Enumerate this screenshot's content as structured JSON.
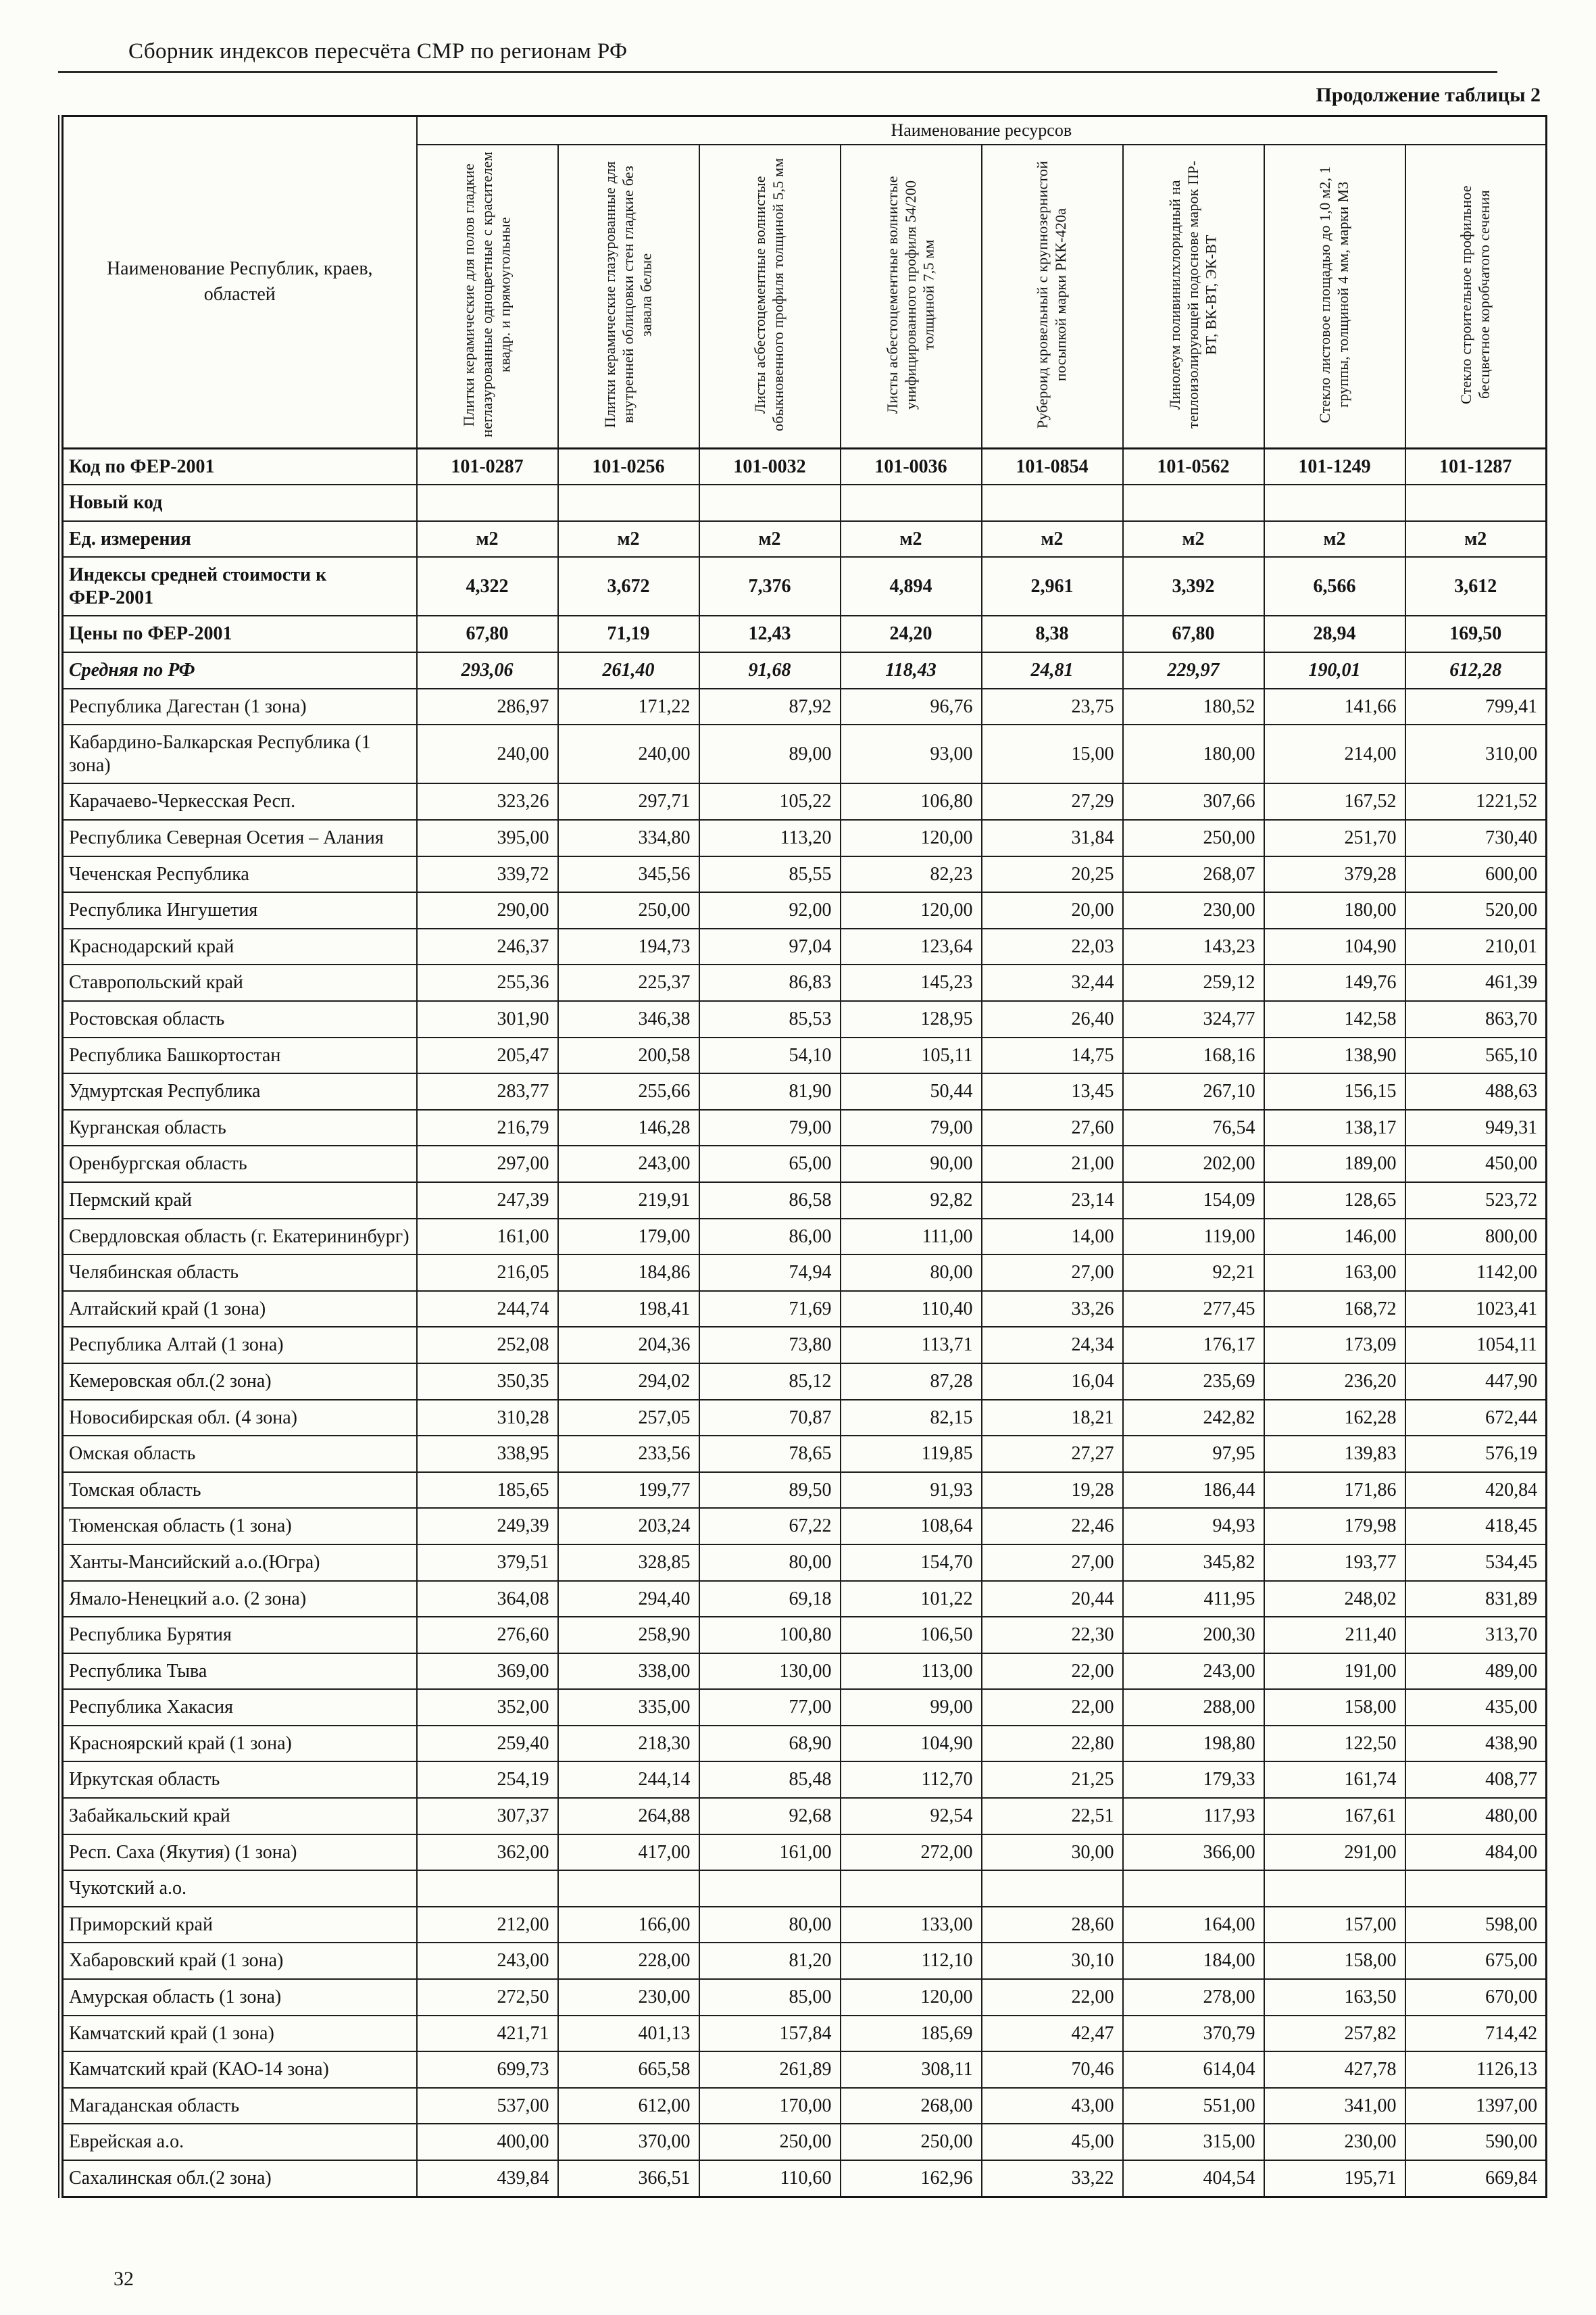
{
  "page": {
    "header_title": "Сборник индексов пересчёта СМР по регионам РФ",
    "table_caption": "Продолжение таблицы 2",
    "page_number": "32"
  },
  "table": {
    "resources_group_header": "Наименование ресурсов",
    "region_column_header": "Наименование Республик, краев, областей",
    "resource_columns": [
      "Плитки керамические для полов гладкие неглазурованные одноцветные с красителем квадр. и прямоугольные",
      "Плитки керамические глазурованные для внутренней облицовки стен гладкие без завала белые",
      "Листы асбестоцементные волнистые обыкновенного профиля толщиной 5,5 мм",
      "Листы асбестоцементные волнистые унифицированного профиля 54/200 толщиной 7,5 мм",
      "Рубероид кровельный с крупнозернистой посыпкой марки РКК-420а",
      "Линолеум поливинилхлоридный на теплоизолирующей подоснове марок ПР-ВТ, ВК-ВТ, ЭК-ВТ",
      "Стекло листовое площадью до 1,0 м2, 1 группы, толщиной 4 мм, марки М3",
      "Стекло строительное профильное бесцветное коробчатого сечения"
    ],
    "meta_rows": [
      {
        "label": "Код по ФЕР-2001",
        "values": [
          "101-0287",
          "101-0256",
          "101-0032",
          "101-0036",
          "101-0854",
          "101-0562",
          "101-1249",
          "101-1287"
        ]
      },
      {
        "label": "Новый код",
        "values": [
          "",
          "",
          "",
          "",
          "",
          "",
          "",
          ""
        ]
      },
      {
        "label": "Ед. измерения",
        "values": [
          "м2",
          "м2",
          "м2",
          "м2",
          "м2",
          "м2",
          "м2",
          "м2"
        ]
      },
      {
        "label": "Индексы средней стоимости к ФЕР-2001",
        "values": [
          "4,322",
          "3,672",
          "7,376",
          "4,894",
          "2,961",
          "3,392",
          "6,566",
          "3,612"
        ]
      },
      {
        "label": "Цены по ФЕР-2001",
        "values": [
          "67,80",
          "71,19",
          "12,43",
          "24,20",
          "8,38",
          "67,80",
          "28,94",
          "169,50"
        ]
      },
      {
        "label": "Средняя по РФ",
        "values": [
          "293,06",
          "261,40",
          "91,68",
          "118,43",
          "24,81",
          "229,97",
          "190,01",
          "612,28"
        ],
        "emphasis": true
      }
    ],
    "region_rows": [
      {
        "label": "Республика Дагестан (1 зона)",
        "values": [
          "286,97",
          "171,22",
          "87,92",
          "96,76",
          "23,75",
          "180,52",
          "141,66",
          "799,41"
        ]
      },
      {
        "label": "Кабардино-Балкарская Республика (1 зона)",
        "values": [
          "240,00",
          "240,00",
          "89,00",
          "93,00",
          "15,00",
          "180,00",
          "214,00",
          "310,00"
        ]
      },
      {
        "label": "Карачаево-Черкесская Респ.",
        "values": [
          "323,26",
          "297,71",
          "105,22",
          "106,80",
          "27,29",
          "307,66",
          "167,52",
          "1221,52"
        ]
      },
      {
        "label": "Республика Северная Осетия – Алания",
        "values": [
          "395,00",
          "334,80",
          "113,20",
          "120,00",
          "31,84",
          "250,00",
          "251,70",
          "730,40"
        ]
      },
      {
        "label": "Чеченская Республика",
        "values": [
          "339,72",
          "345,56",
          "85,55",
          "82,23",
          "20,25",
          "268,07",
          "379,28",
          "600,00"
        ]
      },
      {
        "label": "Республика Ингушетия",
        "values": [
          "290,00",
          "250,00",
          "92,00",
          "120,00",
          "20,00",
          "230,00",
          "180,00",
          "520,00"
        ]
      },
      {
        "label": "Краснодарский край",
        "values": [
          "246,37",
          "194,73",
          "97,04",
          "123,64",
          "22,03",
          "143,23",
          "104,90",
          "210,01"
        ]
      },
      {
        "label": "Ставропольский край",
        "values": [
          "255,36",
          "225,37",
          "86,83",
          "145,23",
          "32,44",
          "259,12",
          "149,76",
          "461,39"
        ]
      },
      {
        "label": "Ростовская область",
        "values": [
          "301,90",
          "346,38",
          "85,53",
          "128,95",
          "26,40",
          "324,77",
          "142,58",
          "863,70"
        ]
      },
      {
        "label": "Республика Башкортостан",
        "values": [
          "205,47",
          "200,58",
          "54,10",
          "105,11",
          "14,75",
          "168,16",
          "138,90",
          "565,10"
        ]
      },
      {
        "label": "Удмуртская Республика",
        "values": [
          "283,77",
          "255,66",
          "81,90",
          "50,44",
          "13,45",
          "267,10",
          "156,15",
          "488,63"
        ]
      },
      {
        "label": "Курганская область",
        "values": [
          "216,79",
          "146,28",
          "79,00",
          "79,00",
          "27,60",
          "76,54",
          "138,17",
          "949,31"
        ]
      },
      {
        "label": "Оренбургская область",
        "values": [
          "297,00",
          "243,00",
          "65,00",
          "90,00",
          "21,00",
          "202,00",
          "189,00",
          "450,00"
        ]
      },
      {
        "label": "Пермский край",
        "values": [
          "247,39",
          "219,91",
          "86,58",
          "92,82",
          "23,14",
          "154,09",
          "128,65",
          "523,72"
        ]
      },
      {
        "label": "Свердловская область (г. Екатерининбург)",
        "values": [
          "161,00",
          "179,00",
          "86,00",
          "111,00",
          "14,00",
          "119,00",
          "146,00",
          "800,00"
        ]
      },
      {
        "label": "Челябинская область",
        "values": [
          "216,05",
          "184,86",
          "74,94",
          "80,00",
          "27,00",
          "92,21",
          "163,00",
          "1142,00"
        ]
      },
      {
        "label": "Алтайский край (1 зона)",
        "values": [
          "244,74",
          "198,41",
          "71,69",
          "110,40",
          "33,26",
          "277,45",
          "168,72",
          "1023,41"
        ]
      },
      {
        "label": "Республика Алтай (1 зона)",
        "values": [
          "252,08",
          "204,36",
          "73,80",
          "113,71",
          "24,34",
          "176,17",
          "173,09",
          "1054,11"
        ]
      },
      {
        "label": "Кемеровская обл.(2 зона)",
        "values": [
          "350,35",
          "294,02",
          "85,12",
          "87,28",
          "16,04",
          "235,69",
          "236,20",
          "447,90"
        ]
      },
      {
        "label": "Новосибирская обл. (4 зона)",
        "values": [
          "310,28",
          "257,05",
          "70,87",
          "82,15",
          "18,21",
          "242,82",
          "162,28",
          "672,44"
        ]
      },
      {
        "label": "Омская область",
        "values": [
          "338,95",
          "233,56",
          "78,65",
          "119,85",
          "27,27",
          "97,95",
          "139,83",
          "576,19"
        ]
      },
      {
        "label": "Томская область",
        "values": [
          "185,65",
          "199,77",
          "89,50",
          "91,93",
          "19,28",
          "186,44",
          "171,86",
          "420,84"
        ]
      },
      {
        "label": "Тюменская область (1 зона)",
        "values": [
          "249,39",
          "203,24",
          "67,22",
          "108,64",
          "22,46",
          "94,93",
          "179,98",
          "418,45"
        ]
      },
      {
        "label": "Ханты-Мансийский а.о.(Югра)",
        "values": [
          "379,51",
          "328,85",
          "80,00",
          "154,70",
          "27,00",
          "345,82",
          "193,77",
          "534,45"
        ]
      },
      {
        "label": "Ямало-Ненецкий а.о. (2 зона)",
        "values": [
          "364,08",
          "294,40",
          "69,18",
          "101,22",
          "20,44",
          "411,95",
          "248,02",
          "831,89"
        ]
      },
      {
        "label": "Республика Бурятия",
        "values": [
          "276,60",
          "258,90",
          "100,80",
          "106,50",
          "22,30",
          "200,30",
          "211,40",
          "313,70"
        ]
      },
      {
        "label": "Республика Тыва",
        "values": [
          "369,00",
          "338,00",
          "130,00",
          "113,00",
          "22,00",
          "243,00",
          "191,00",
          "489,00"
        ]
      },
      {
        "label": "Республика Хакасия",
        "values": [
          "352,00",
          "335,00",
          "77,00",
          "99,00",
          "22,00",
          "288,00",
          "158,00",
          "435,00"
        ]
      },
      {
        "label": "Красноярский край (1 зона)",
        "values": [
          "259,40",
          "218,30",
          "68,90",
          "104,90",
          "22,80",
          "198,80",
          "122,50",
          "438,90"
        ]
      },
      {
        "label": "Иркутская область",
        "values": [
          "254,19",
          "244,14",
          "85,48",
          "112,70",
          "21,25",
          "179,33",
          "161,74",
          "408,77"
        ]
      },
      {
        "label": "Забайкальский край",
        "values": [
          "307,37",
          "264,88",
          "92,68",
          "92,54",
          "22,51",
          "117,93",
          "167,61",
          "480,00"
        ]
      },
      {
        "label": "Респ. Саха (Якутия) (1 зона)",
        "values": [
          "362,00",
          "417,00",
          "161,00",
          "272,00",
          "30,00",
          "366,00",
          "291,00",
          "484,00"
        ]
      },
      {
        "label": "Чукотский а.о.",
        "values": [
          "",
          "",
          "",
          "",
          "",
          "",
          "",
          ""
        ]
      },
      {
        "label": "Приморский край",
        "values": [
          "212,00",
          "166,00",
          "80,00",
          "133,00",
          "28,60",
          "164,00",
          "157,00",
          "598,00"
        ]
      },
      {
        "label": "Хабаровский край (1 зона)",
        "values": [
          "243,00",
          "228,00",
          "81,20",
          "112,10",
          "30,10",
          "184,00",
          "158,00",
          "675,00"
        ]
      },
      {
        "label": "Амурская область (1 зона)",
        "values": [
          "272,50",
          "230,00",
          "85,00",
          "120,00",
          "22,00",
          "278,00",
          "163,50",
          "670,00"
        ]
      },
      {
        "label": "Камчатский край (1 зона)",
        "values": [
          "421,71",
          "401,13",
          "157,84",
          "185,69",
          "42,47",
          "370,79",
          "257,82",
          "714,42"
        ]
      },
      {
        "label": "Камчатский край (КАО-14 зона)",
        "values": [
          "699,73",
          "665,58",
          "261,89",
          "308,11",
          "70,46",
          "614,04",
          "427,78",
          "1126,13"
        ]
      },
      {
        "label": "Магаданская область",
        "values": [
          "537,00",
          "612,00",
          "170,00",
          "268,00",
          "43,00",
          "551,00",
          "341,00",
          "1397,00"
        ]
      },
      {
        "label": "Еврейская а.о.",
        "values": [
          "400,00",
          "370,00",
          "250,00",
          "250,00",
          "45,00",
          "315,00",
          "230,00",
          "590,00"
        ]
      },
      {
        "label": "Сахалинская обл.(2 зона)",
        "values": [
          "439,84",
          "366,51",
          "110,60",
          "162,96",
          "33,22",
          "404,54",
          "195,71",
          "669,84"
        ]
      }
    ]
  }
}
